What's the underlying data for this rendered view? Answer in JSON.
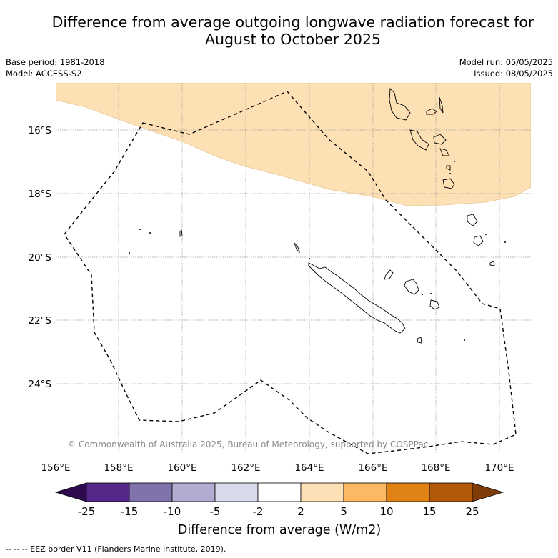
{
  "title_line1": "Difference from average outgoing longwave radiation forecast for",
  "title_line2": "August to October 2025",
  "base_period": "Base period: 1981-2018",
  "model": "Model: ACCESS-S2",
  "model_run": "Model run: 05/05/2025",
  "issued": "Issued: 08/05/2025",
  "credit": "© Commonwealth of Australia 2025, Bureau of Meteorology, supported by COSPPac",
  "footnote": "--  --  -- EEZ border V11 (Flanders Marine Institute, 2019).",
  "map": {
    "region": "New Caledonia EEZ",
    "lon_range": [
      156,
      171
    ],
    "lat_range": [
      -26,
      -14.5
    ],
    "lon_ticks": [
      "156°E",
      "158°E",
      "160°E",
      "162°E",
      "164°E",
      "166°E",
      "168°E",
      "170°E"
    ],
    "lat_ticks": [
      "16°S",
      "18°S",
      "20°S",
      "22°S",
      "24°S"
    ],
    "anomaly_fill_color": "#fde0b3",
    "anomaly_category": "2 to 5"
  },
  "colorbar": {
    "label": "Difference from average (W/m2)",
    "ticks": [
      "-25",
      "-15",
      "-10",
      "-5",
      "-2",
      "2",
      "5",
      "10",
      "15",
      "25"
    ],
    "colors": [
      "#2d0a4e",
      "#542788",
      "#8073ac",
      "#b2abd2",
      "#d8daeb",
      "#ffffff",
      "#fee0b6",
      "#fdb863",
      "#e08214",
      "#b35806",
      "#7f3b08"
    ]
  }
}
